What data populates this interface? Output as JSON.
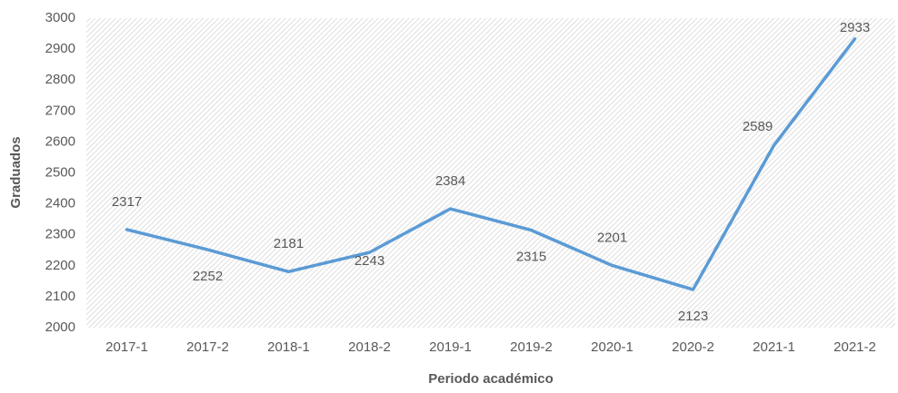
{
  "chart_data": {
    "type": "line",
    "x_label": "Periodo académico",
    "y_label": "Graduados",
    "categories": [
      "2017-1",
      "2017-2",
      "2018-1",
      "2018-2",
      "2019-1",
      "2019-2",
      "2020-1",
      "2020-2",
      "2021-1",
      "2021-2"
    ],
    "values": [
      2317,
      2252,
      2181,
      2243,
      2384,
      2315,
      2201,
      2123,
      2589,
      2933
    ],
    "color": "#5b9bd5",
    "ylim": [
      2000,
      3000
    ],
    "yticks": [
      2000,
      2100,
      2200,
      2300,
      2400,
      2500,
      2600,
      2700,
      2800,
      2900,
      3000
    ],
    "grid": false
  }
}
